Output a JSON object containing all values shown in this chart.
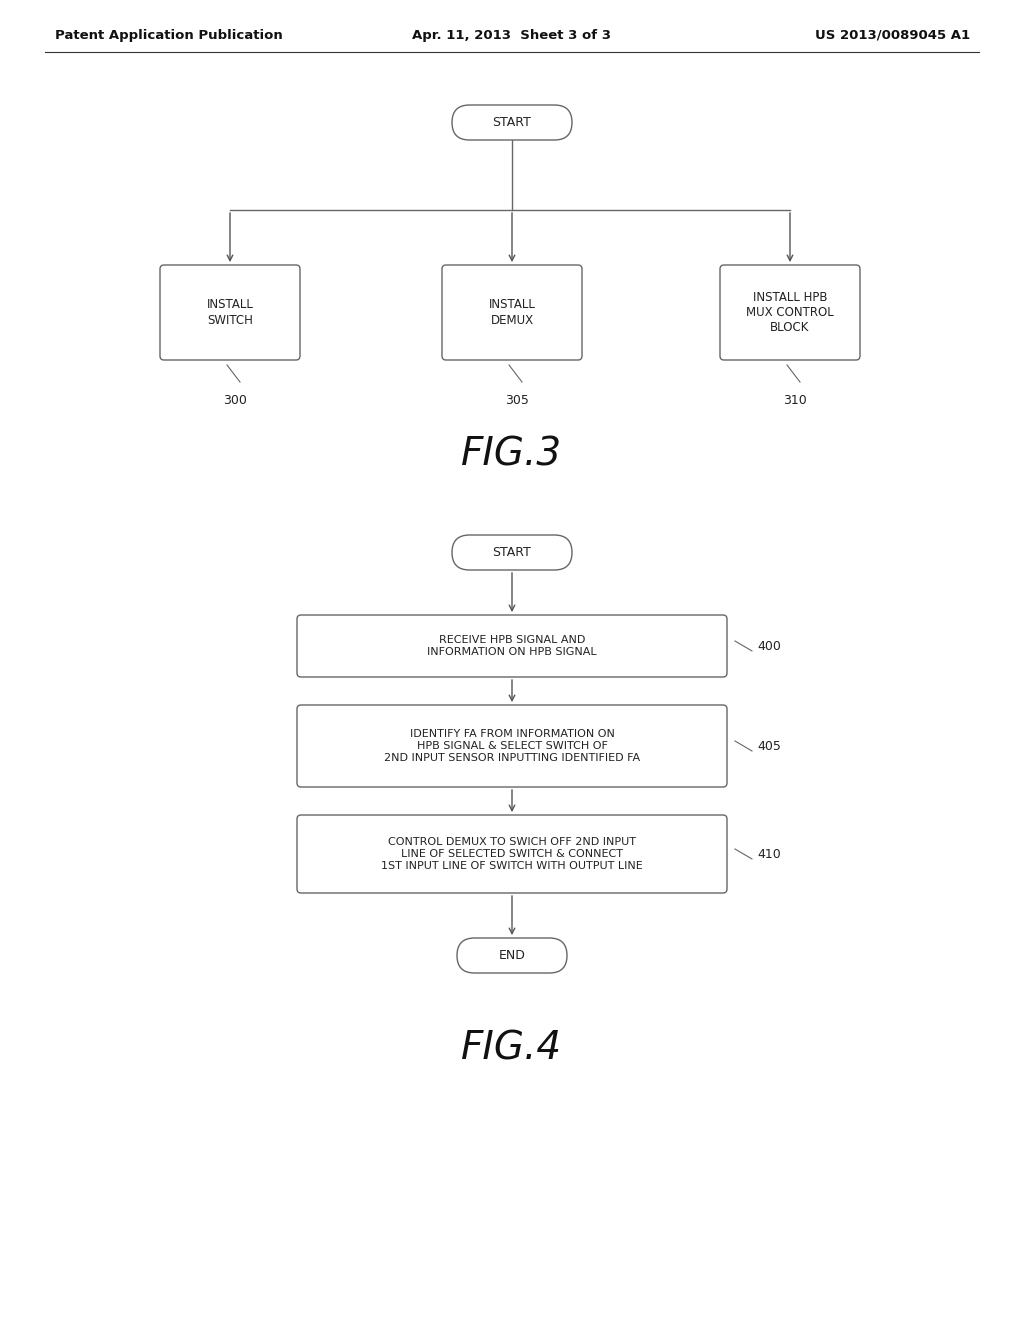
{
  "header_left": "Patent Application Publication",
  "header_center": "Apr. 11, 2013  Sheet 3 of 3",
  "header_right": "US 2013/0089045 A1",
  "fig3": {
    "title": "FIG.3",
    "start_label": "START",
    "boxes": [
      {
        "label": "INSTALL\nSWITCH",
        "number": "300"
      },
      {
        "label": "INSTALL\nDEMUX",
        "number": "305"
      },
      {
        "label": "INSTALL HPB\nMUX CONTROL\nBLOCK",
        "number": "310"
      }
    ]
  },
  "fig4": {
    "title": "FIG.4",
    "start_label": "START",
    "end_label": "END",
    "boxes": [
      {
        "label": "RECEIVE HPB SIGNAL AND\nINFORMATION ON HPB SIGNAL",
        "number": "400"
      },
      {
        "label": "IDENTIFY FA FROM INFORMATION ON\nHPB SIGNAL & SELECT SWITCH OF\n2ND INPUT SENSOR INPUTTING IDENTIFIED FA",
        "number": "405"
      },
      {
        "label": "CONTROL DEMUX TO SWICH OFF 2ND INPUT\nLINE OF SELECTED SWITCH & CONNECT\n1ST INPUT LINE OF SWITCH WITH OUTPUT LINE",
        "number": "410"
      }
    ]
  },
  "bg_color": "#ffffff",
  "box_edge_color": "#666666",
  "text_color": "#222222",
  "arrow_color": "#555555",
  "line_color": "#666666"
}
